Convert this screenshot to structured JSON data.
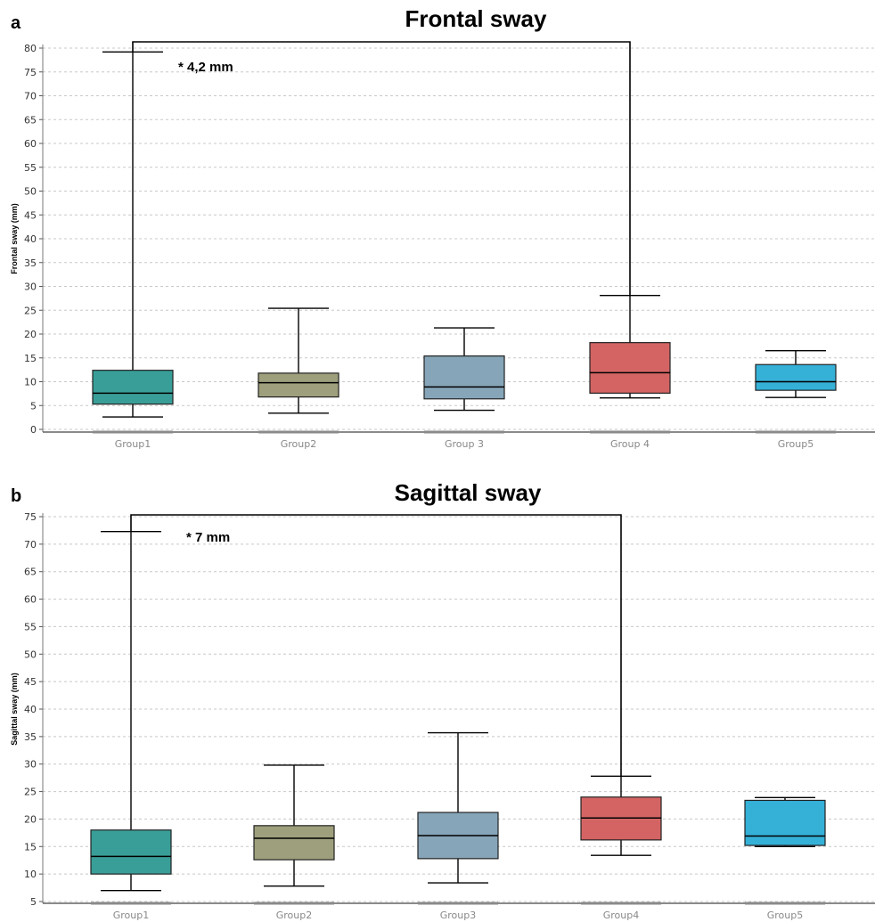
{
  "chart_data": [
    {
      "type": "box",
      "panel_label": "a",
      "title": "Frontal sway",
      "ylabel": "Frontal sway (mm)",
      "ylim": [
        0,
        80
      ],
      "ytick_step": 5,
      "grid": true,
      "categories": [
        "Group1",
        "Group2",
        "Group 3",
        "Group 4",
        "Group5"
      ],
      "colors": [
        "#3a9e98",
        "#9e9f7c",
        "#86a5b8",
        "#d46464",
        "#35b1d8"
      ],
      "boxes": [
        {
          "min": 2.6,
          "q1": 5.3,
          "median": 7.6,
          "q3": 12.4,
          "max": 79.2
        },
        {
          "min": 3.4,
          "q1": 6.8,
          "median": 9.8,
          "q3": 11.8,
          "max": 25.4
        },
        {
          "min": 4.0,
          "q1": 6.4,
          "median": 8.9,
          "q3": 15.4,
          "max": 21.3
        },
        {
          "min": 6.6,
          "q1": 7.6,
          "median": 11.9,
          "q3": 18.2,
          "max": 28.1
        },
        {
          "min": 6.7,
          "q1": 8.2,
          "median": 10.0,
          "q3": 13.6,
          "max": 16.5
        }
      ],
      "significance": {
        "from": 0,
        "to": 3,
        "label": "* 4,2 mm",
        "y": 81
      }
    },
    {
      "type": "box",
      "panel_label": "b",
      "title": "Sagittal sway",
      "ylabel": "Sagittal sway (mm)",
      "ylim": [
        5,
        75
      ],
      "ytick_step": 5,
      "grid": true,
      "categories": [
        "Group1",
        "Group2",
        "Group3",
        "Group4",
        "Group5"
      ],
      "colors": [
        "#3a9e98",
        "#9e9f7c",
        "#86a5b8",
        "#d46464",
        "#35b1d8"
      ],
      "boxes": [
        {
          "min": 7.0,
          "q1": 10.0,
          "median": 13.2,
          "q3": 18.0,
          "max": 72.3
        },
        {
          "min": 7.8,
          "q1": 12.6,
          "median": 16.5,
          "q3": 18.8,
          "max": 29.8
        },
        {
          "min": 8.4,
          "q1": 12.8,
          "median": 17.0,
          "q3": 21.2,
          "max": 35.7
        },
        {
          "min": 13.4,
          "q1": 16.2,
          "median": 20.2,
          "q3": 24.0,
          "max": 27.8
        },
        {
          "min": 15.0,
          "q1": 15.2,
          "median": 16.9,
          "q3": 23.4,
          "max": 23.9
        }
      ],
      "significance": {
        "from": 0,
        "to": 3,
        "label": "* 7 mm",
        "y": 75.5
      }
    }
  ]
}
